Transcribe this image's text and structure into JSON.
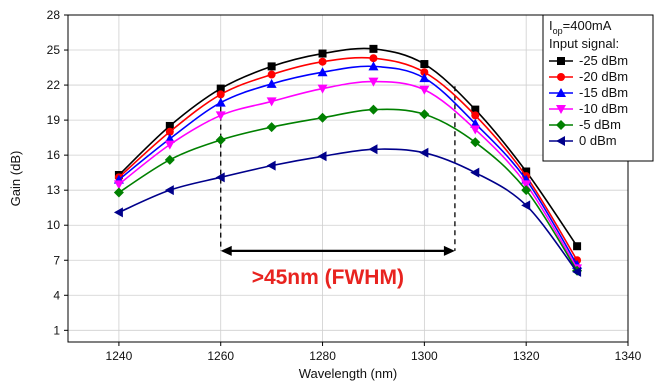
{
  "chart_data": {
    "type": "line",
    "xlabel": "Wavelength (nm)",
    "ylabel": "Gain (dB)",
    "xlim": [
      1230,
      1340
    ],
    "ylim": [
      0,
      28
    ],
    "xticks": [
      1240,
      1260,
      1280,
      1300,
      1320,
      1340
    ],
    "yticks": [
      1,
      4,
      7,
      10,
      13,
      16,
      19,
      22,
      25,
      28
    ],
    "grid": true,
    "x": [
      1240,
      1250,
      1260,
      1270,
      1280,
      1290,
      1300,
      1310,
      1320,
      1330
    ],
    "series": [
      {
        "name": "-25 dBm",
        "color": "#000000",
        "marker": "square",
        "values": [
          14.3,
          18.5,
          21.7,
          23.6,
          24.7,
          25.1,
          23.8,
          19.9,
          14.6,
          8.2
        ]
      },
      {
        "name": "-20 dBm",
        "color": "#ff0000",
        "marker": "circle",
        "values": [
          14.1,
          18.0,
          21.2,
          22.9,
          24.0,
          24.3,
          23.1,
          19.4,
          14.2,
          7.0
        ]
      },
      {
        "name": "-15 dBm",
        "color": "#0000ff",
        "marker": "triangle-up",
        "values": [
          13.9,
          17.4,
          20.5,
          22.1,
          23.1,
          23.6,
          22.6,
          18.7,
          13.9,
          6.6
        ]
      },
      {
        "name": "-10 dBm",
        "color": "#ff00ff",
        "marker": "triangle-down",
        "values": [
          13.5,
          16.9,
          19.4,
          20.6,
          21.7,
          22.3,
          21.6,
          18.2,
          13.5,
          6.3
        ]
      },
      {
        "name": "-5 dBm",
        "color": "#008000",
        "marker": "diamond",
        "values": [
          12.8,
          15.6,
          17.3,
          18.4,
          19.2,
          19.9,
          19.5,
          17.1,
          13.0,
          6.1
        ]
      },
      {
        "name": "0 dBm",
        "color": "#00008b",
        "marker": "triangle-left",
        "values": [
          11.1,
          13.0,
          14.1,
          15.1,
          15.9,
          16.5,
          16.2,
          14.5,
          11.7,
          6.0
        ]
      }
    ],
    "legend": {
      "position": "top-right",
      "title_line_1_base": "I",
      "title_line_1_sub": "op",
      "title_line_1_rest": "=400mA",
      "title_line_2": "Input signal:"
    },
    "annotation": {
      "text": ">45nm (FWHM)",
      "color": "#e8231f",
      "arrow_x_start": 1260,
      "arrow_x_end": 1306,
      "arrow_y": 7.8,
      "dashed_left_x": 1260,
      "dashed_left_from_y": 21.7,
      "dashed_right_x": 1306,
      "dashed_right_from_y": 21.9
    }
  }
}
